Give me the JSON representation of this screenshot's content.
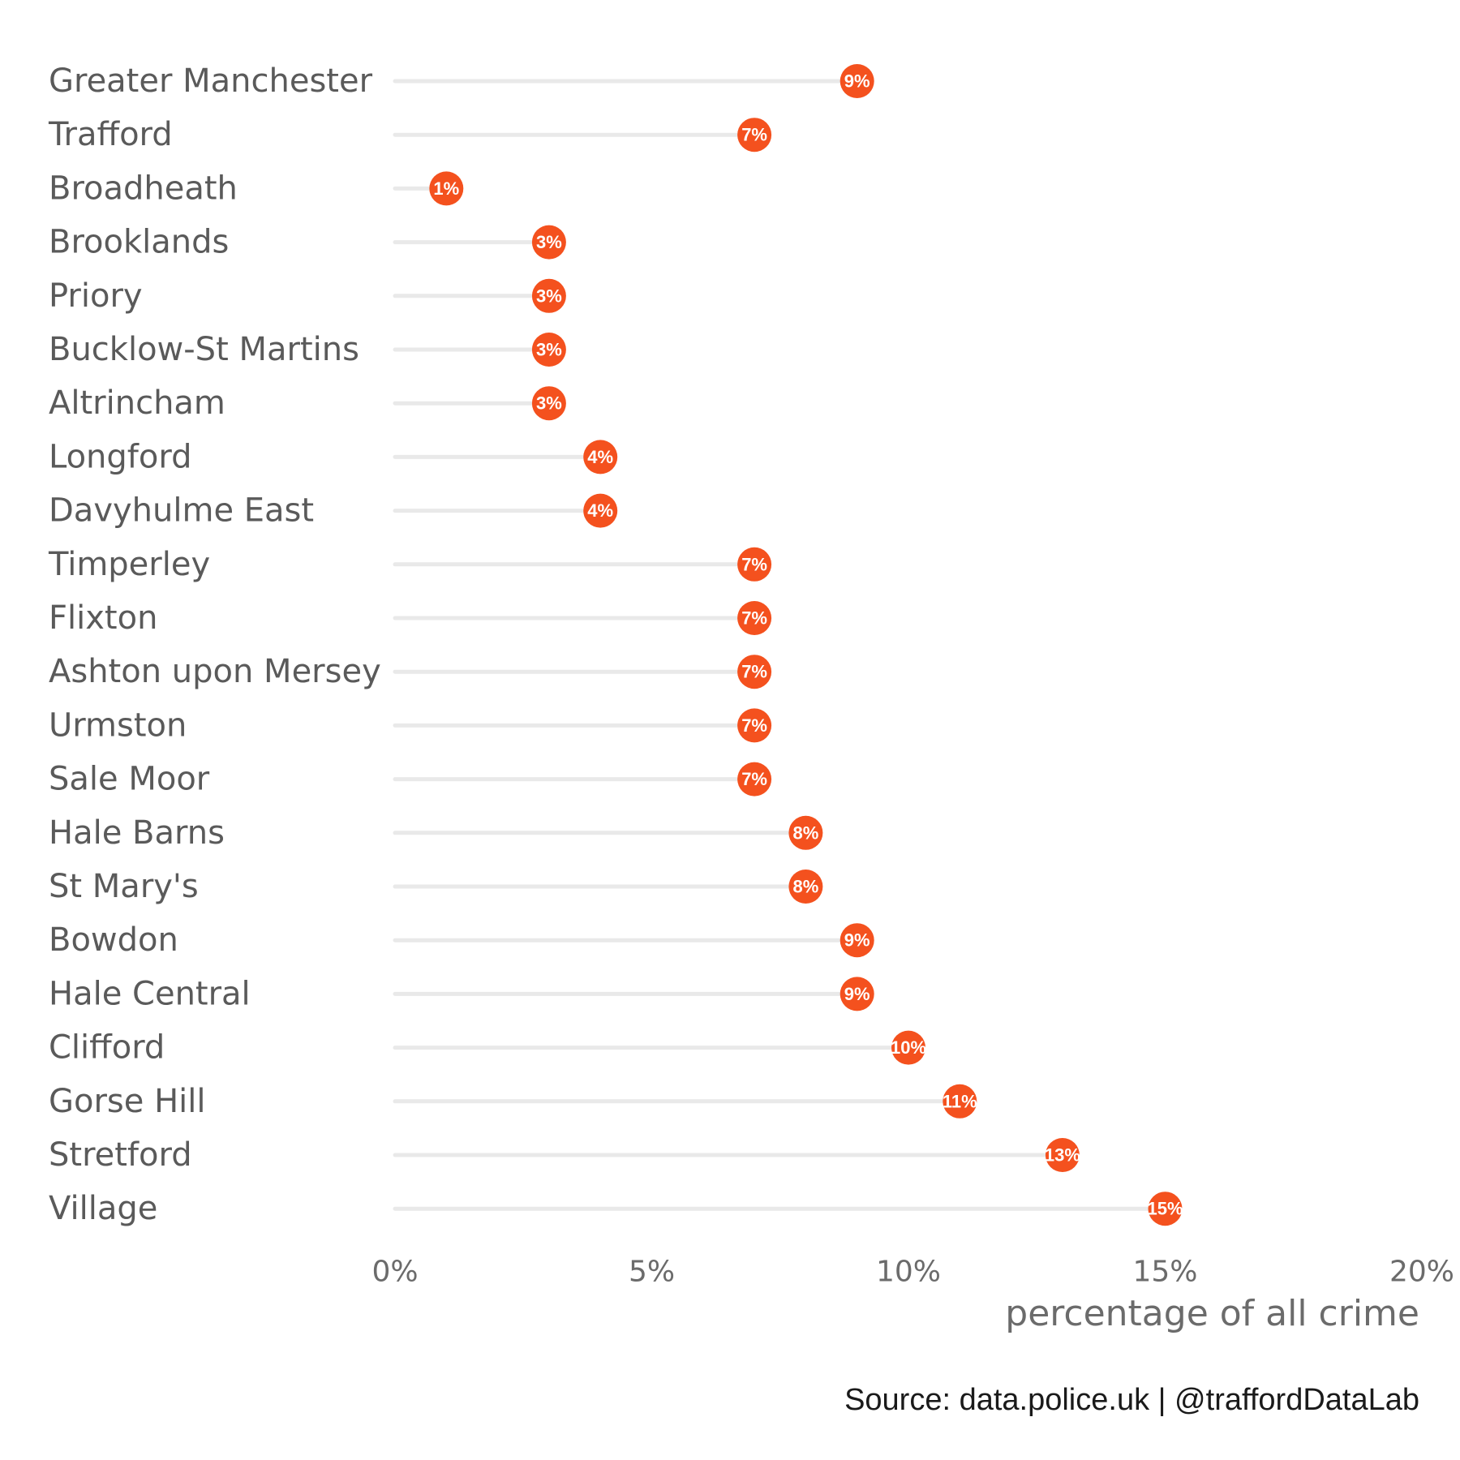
{
  "chart_data": {
    "type": "lollipop",
    "categories": [
      "Greater Manchester",
      "Trafford",
      "Broadheath",
      "Brooklands",
      "Priory",
      "Bucklow-St Martins",
      "Altrincham",
      "Longford",
      "Davyhulme East",
      "Timperley",
      "Flixton",
      "Ashton upon Mersey",
      "Urmston",
      "Sale Moor",
      "Hale Barns",
      "St Mary's",
      "Bowdon",
      "Hale Central",
      "Clifford",
      "Gorse Hill",
      "Stretford",
      "Village"
    ],
    "values": [
      9,
      7,
      1,
      3,
      3,
      3,
      3,
      4,
      4,
      7,
      7,
      7,
      7,
      7,
      8,
      8,
      9,
      9,
      10,
      11,
      13,
      15
    ],
    "data_labels": [
      "9%",
      "7%",
      "1%",
      "3%",
      "3%",
      "3%",
      "3%",
      "4%",
      "4%",
      "7%",
      "7%",
      "7%",
      "7%",
      "7%",
      "8%",
      "8%",
      "9%",
      "9%",
      "10%",
      "11%",
      "13%",
      "15%"
    ],
    "xlim": [
      0,
      20
    ],
    "x_ticks": [
      0,
      5,
      10,
      15,
      20
    ],
    "x_tick_labels": [
      "0%",
      "5%",
      "10%",
      "15%",
      "20%"
    ],
    "xlabel": "percentage of all crime",
    "ylabel": "",
    "title": "",
    "grid": false,
    "legend": "none",
    "colors": {
      "dot": "#f4511e",
      "stem": "#e9e9e9",
      "dot_label": "#ffffff"
    }
  },
  "caption": "Source: data.police.uk  |  @traffordDataLab"
}
